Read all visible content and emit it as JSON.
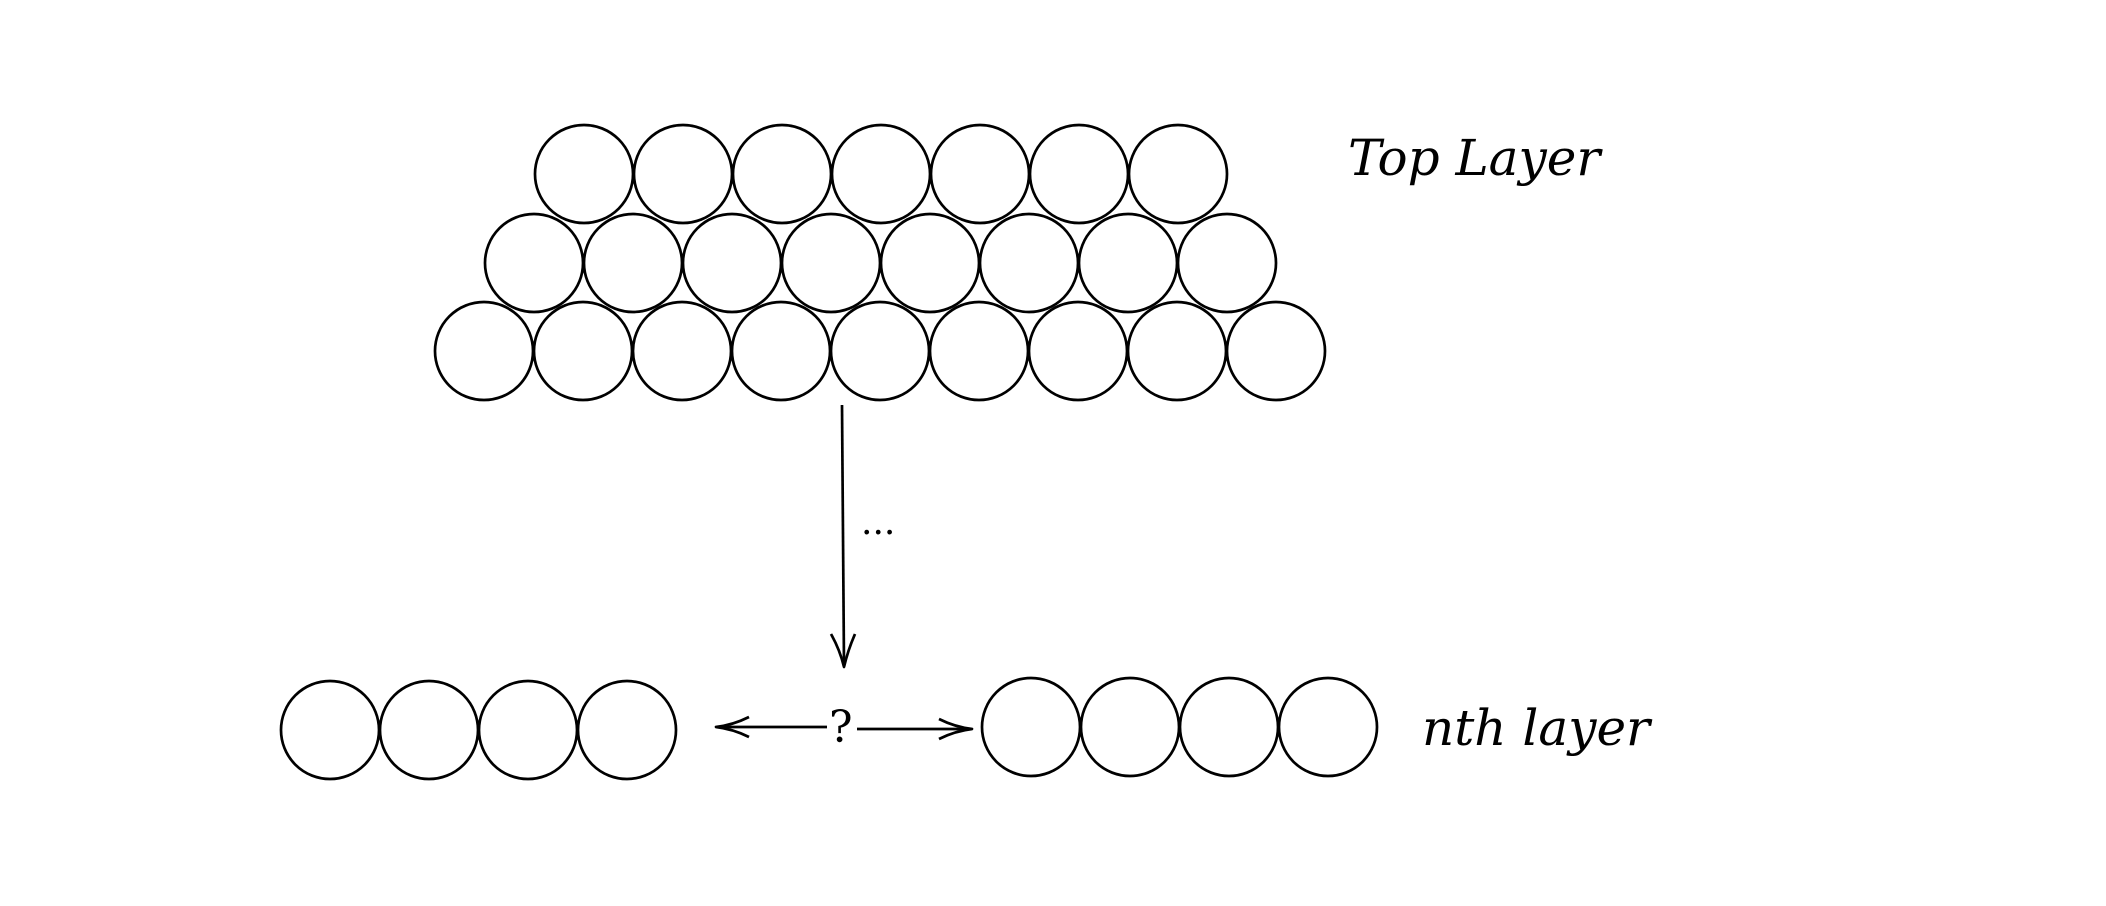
{
  "labels": {
    "top_layer": "Top Layer",
    "nth_layer": "nth layer",
    "ellipsis": "...",
    "question": "?"
  },
  "structure": {
    "top_stack_rows": [
      7,
      8,
      9
    ],
    "bottom_left_count": 4,
    "bottom_right_count": 4
  },
  "colors": {
    "stroke": "#000000",
    "background": "#ffffff"
  }
}
